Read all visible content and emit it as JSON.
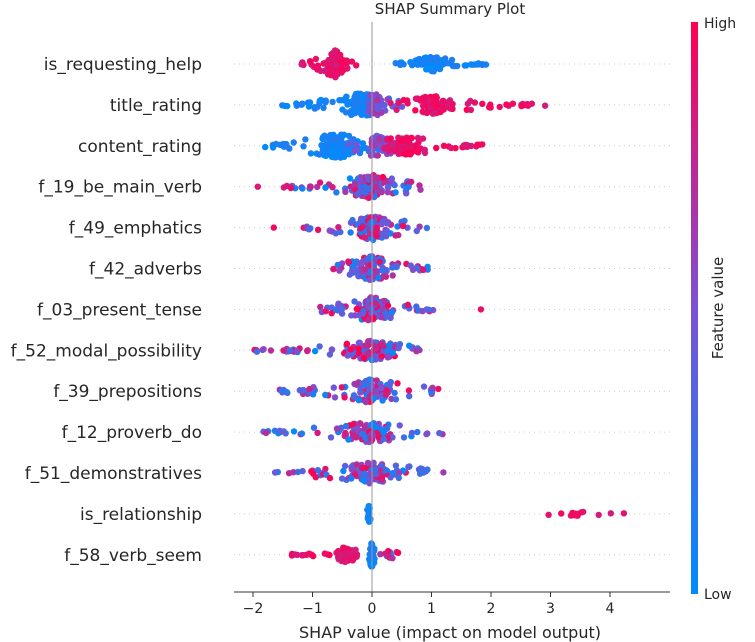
{
  "chart_data": {
    "type": "scatter",
    "subtype": "shap-beeswarm-summary",
    "title": "SHAP Summary Plot",
    "xlabel": "SHAP value (impact on model output)",
    "xlim": [
      -2.3,
      4.8
    ],
    "xticks": [
      -2,
      -1,
      0,
      1,
      2,
      3,
      4
    ],
    "xtick_labels": [
      "−2",
      "−1",
      "0",
      "1",
      "2",
      "3",
      "4"
    ],
    "zero_line": true,
    "colorbar": {
      "label": "Feature value",
      "high_label": "High",
      "low_label": "Low",
      "low_color": "#008bfb",
      "mid_color": "#7b52d4",
      "high_color": "#ff0051"
    },
    "features": [
      {
        "name": "is_requesting_help",
        "groups": [
          {
            "range": [
              -1.2,
              -0.25
            ],
            "count": 90,
            "spread": 1.0,
            "center": -0.62,
            "color": "high"
          },
          {
            "range": [
              0.38,
              1.92
            ],
            "count": 80,
            "spread": 0.55,
            "center": 1.0,
            "color": "low"
          }
        ]
      },
      {
        "name": "title_rating",
        "groups": [
          {
            "range": [
              -1.55,
              0.5
            ],
            "count": 110,
            "spread": 0.85,
            "center": -0.2,
            "color": "low"
          },
          {
            "range": [
              -0.5,
              0.6
            ],
            "count": 50,
            "spread": 0.8,
            "center": 0.05,
            "color": "mid"
          },
          {
            "range": [
              0.3,
              2.95
            ],
            "count": 100,
            "spread": 0.65,
            "center": 1.0,
            "color": "high"
          }
        ]
      },
      {
        "name": "content_rating",
        "groups": [
          {
            "range": [
              -1.85,
              0.2
            ],
            "count": 130,
            "spread": 0.9,
            "center": -0.6,
            "color": "low"
          },
          {
            "range": [
              -0.4,
              0.8
            ],
            "count": 60,
            "spread": 0.85,
            "center": 0.1,
            "color": "mid"
          },
          {
            "range": [
              0.2,
              2.2
            ],
            "count": 90,
            "spread": 0.7,
            "center": 0.6,
            "color": "high"
          }
        ]
      },
      {
        "name": "f_19_be_main_verb",
        "groups": [
          {
            "range": [
              -1.5,
              0.9
            ],
            "count": 140,
            "spread": 0.85,
            "center": 0.0,
            "color": "mixed"
          },
          {
            "range": [
              -1.92,
              -1.92
            ],
            "count": 1,
            "spread": 0,
            "center": -1.92,
            "color": "high"
          }
        ]
      },
      {
        "name": "f_49_emphatics",
        "groups": [
          {
            "range": [
              -1.2,
              0.95
            ],
            "count": 130,
            "spread": 0.9,
            "center": 0.0,
            "color": "mixed"
          },
          {
            "range": [
              -1.65,
              -1.65
            ],
            "count": 1,
            "spread": 0,
            "center": -1.65,
            "color": "high"
          }
        ]
      },
      {
        "name": "f_42_adverbs",
        "groups": [
          {
            "range": [
              -0.75,
              0.95
            ],
            "count": 130,
            "spread": 0.9,
            "center": 0.0,
            "color": "mixed"
          }
        ]
      },
      {
        "name": "f_03_present_tense",
        "groups": [
          {
            "range": [
              -0.9,
              1.05
            ],
            "count": 130,
            "spread": 0.9,
            "center": 0.0,
            "color": "mixed"
          },
          {
            "range": [
              1.83,
              1.83
            ],
            "count": 1,
            "spread": 0,
            "center": 1.83,
            "color": "high"
          }
        ]
      },
      {
        "name": "f_52_modal_possibility",
        "groups": [
          {
            "range": [
              -2.0,
              0.8
            ],
            "count": 140,
            "spread": 0.7,
            "center": 0.0,
            "color": "mixed"
          }
        ]
      },
      {
        "name": "f_39_prepositions",
        "groups": [
          {
            "range": [
              -1.55,
              1.15
            ],
            "count": 120,
            "spread": 0.85,
            "center": 0.0,
            "color": "mixed"
          }
        ]
      },
      {
        "name": "f_12_proverb_do",
        "groups": [
          {
            "range": [
              -1.9,
              1.2
            ],
            "count": 130,
            "spread": 0.75,
            "center": 0.0,
            "color": "mixed"
          }
        ]
      },
      {
        "name": "f_51_demonstratives",
        "groups": [
          {
            "range": [
              -1.65,
              1.35
            ],
            "count": 120,
            "spread": 0.75,
            "center": 0.0,
            "color": "mixed"
          }
        ]
      },
      {
        "name": "is_relationship",
        "groups": [
          {
            "range": [
              -0.08,
              -0.02
            ],
            "count": 40,
            "spread": 0.6,
            "center": -0.05,
            "color": "low"
          },
          {
            "range": [
              2.7,
              4.55
            ],
            "count": 14,
            "spread": 0.15,
            "center": 3.5,
            "color": "high"
          }
        ]
      },
      {
        "name": "f_58_verb_seem",
        "groups": [
          {
            "range": [
              -1.35,
              -0.1
            ],
            "count": 70,
            "spread": 0.55,
            "center": -0.45,
            "color": "high"
          },
          {
            "range": [
              -0.05,
              0.05
            ],
            "count": 40,
            "spread": 0.9,
            "center": 0.0,
            "color": "low"
          },
          {
            "range": [
              0.1,
              0.85
            ],
            "count": 14,
            "spread": 0.3,
            "center": 0.3,
            "color": "mixed"
          }
        ]
      }
    ]
  }
}
